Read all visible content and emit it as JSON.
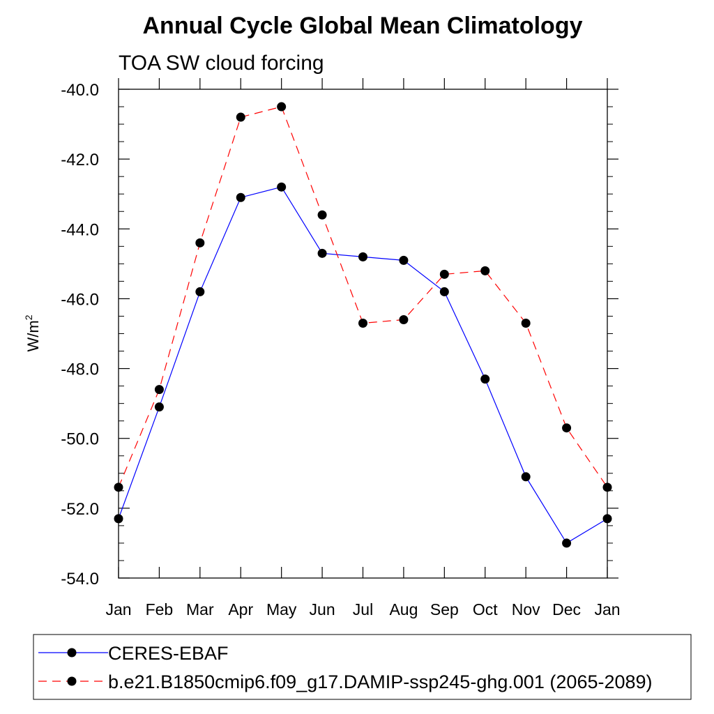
{
  "chart_data": {
    "type": "line",
    "title": "Annual Cycle Global Mean Climatology",
    "subtitle": "TOA SW cloud forcing",
    "ylabel": "W/m",
    "ylabel_sup": "2",
    "xlabel": "",
    "categories": [
      "Jan",
      "Feb",
      "Mar",
      "Apr",
      "May",
      "Jun",
      "Jul",
      "Aug",
      "Sep",
      "Oct",
      "Nov",
      "Dec",
      "Jan"
    ],
    "ylim": [
      -54.0,
      -40.0
    ],
    "yticks": [
      "-40.0",
      "-42.0",
      "-44.0",
      "-46.0",
      "-48.0",
      "-50.0",
      "-52.0",
      "-54.0"
    ],
    "grid": false,
    "legend_position": "bottom",
    "series": [
      {
        "name": "CERES-EBAF",
        "color": "#0000ff",
        "line_style": "solid",
        "marker": "filled-circle",
        "values": [
          -52.3,
          -49.1,
          -45.8,
          -43.1,
          -42.8,
          -44.7,
          -44.8,
          -44.9,
          -45.8,
          -48.3,
          -51.1,
          -53.0,
          -52.3
        ]
      },
      {
        "name": "b.e21.B1850cmip6.f09_g17.DAMIP-ssp245-ghg.001 (2065-2089)",
        "color": "#ff0000",
        "line_style": "dashed",
        "marker": "filled-circle",
        "values": [
          -51.4,
          -48.6,
          -44.4,
          -40.8,
          -40.5,
          -43.6,
          -46.7,
          -46.6,
          -45.3,
          -45.2,
          -46.7,
          -49.7,
          -51.4
        ]
      }
    ]
  }
}
